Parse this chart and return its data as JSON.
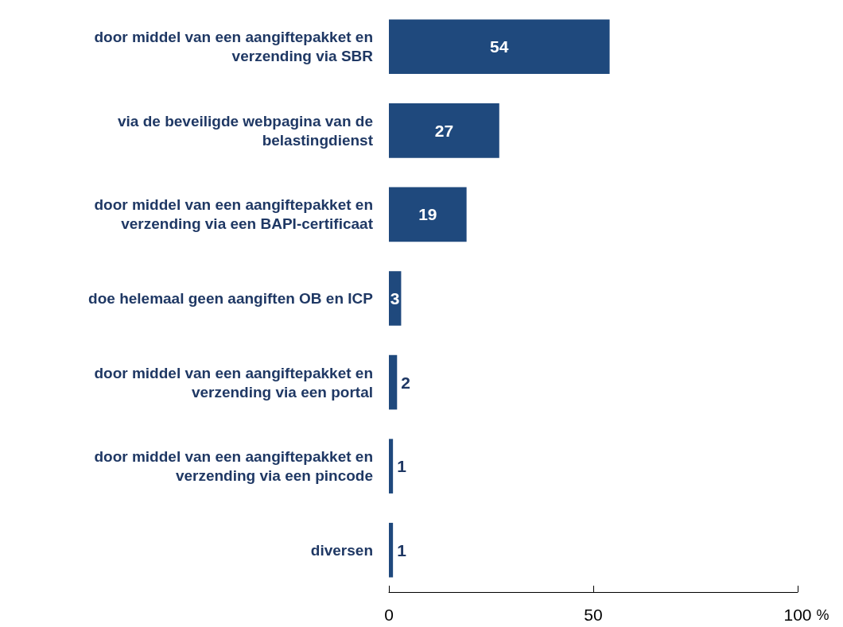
{
  "chart_data": {
    "type": "bar",
    "orientation": "horizontal",
    "xlabel": "%",
    "categories": [
      "door middel van een aangiftepakket en\nverzending via SBR",
      "via de beveiligde webpagina van de\nbelastingdienst",
      "door middel van een aangiftepakket en\nverzending via een BAPI-certificaat",
      "doe helemaal geen aangiften OB en ICP",
      "door middel van een aangiftepakket en\nverzending via een portal",
      "door middel van een aangiftepakket en\nverzending via een pincode",
      "diversen"
    ],
    "values": [
      54,
      27,
      19,
      3,
      2,
      1,
      1
    ],
    "color": "#1f497d",
    "xlim": [
      0,
      100
    ],
    "xticks": [
      0,
      50,
      100
    ],
    "grid": false,
    "data_labels": true
  }
}
